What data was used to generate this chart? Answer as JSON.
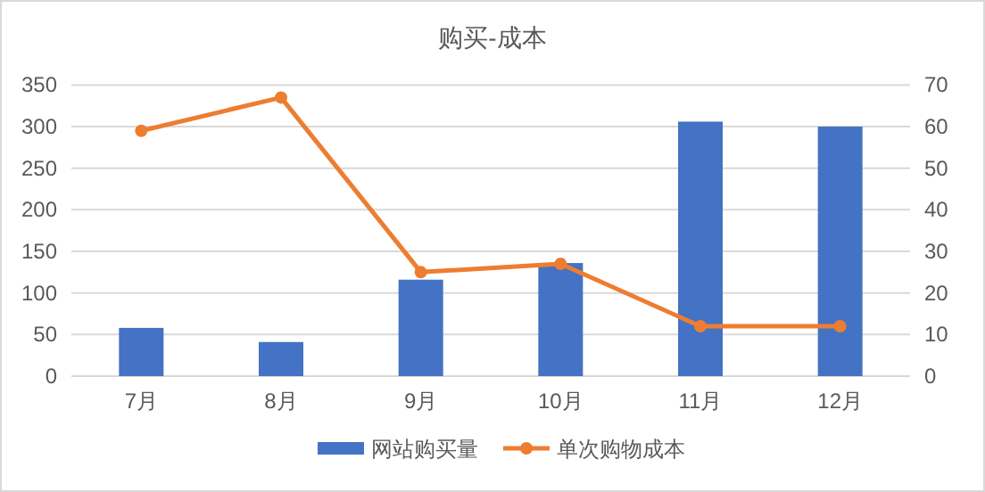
{
  "chart_data": {
    "type": "bar",
    "title": "购买-成本",
    "categories": [
      "7月",
      "8月",
      "9月",
      "10月",
      "11月",
      "12月"
    ],
    "series": [
      {
        "name": "网站购买量",
        "color": "#4472c4",
        "values": [
          58,
          41,
          116,
          136,
          306,
          300
        ]
      },
      {
        "name": "单次购物成本",
        "type": "line",
        "axis": "y2",
        "color": "#ed7d31",
        "marker": "circle",
        "values": [
          59,
          67,
          25,
          27,
          12,
          12
        ]
      }
    ],
    "ylim": [
      0,
      350
    ],
    "yticks": [
      0,
      50,
      100,
      150,
      200,
      250,
      300,
      350
    ],
    "y2lim": [
      0,
      70
    ],
    "y2ticks": [
      0,
      10,
      20,
      30,
      40,
      50,
      60,
      70
    ],
    "grid": "y",
    "legend": "bottom"
  }
}
